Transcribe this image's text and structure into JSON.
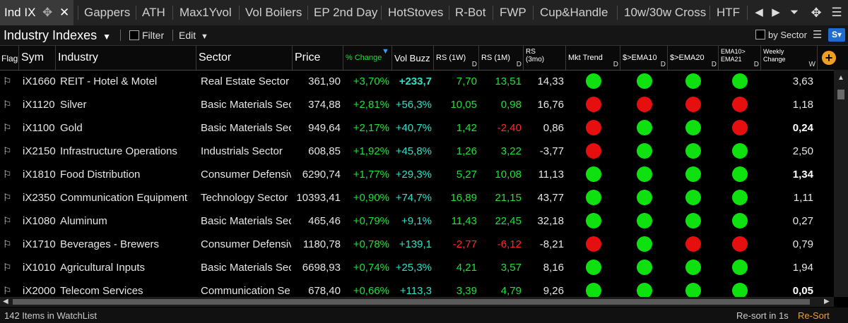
{
  "tabs": [
    {
      "label": "Ind IX",
      "active": true
    },
    {
      "label": "Gappers"
    },
    {
      "label": "ATH"
    },
    {
      "label": "Max1Yvol"
    },
    {
      "label": "Vol Boilers"
    },
    {
      "label": "EP 2nd Day"
    },
    {
      "label": "HotStoves"
    },
    {
      "label": "R-Bot"
    },
    {
      "label": "FWP"
    },
    {
      "label": "Cup&Handle"
    },
    {
      "label": "10w/30w Cross"
    },
    {
      "label": "HTF"
    }
  ],
  "toolbar": {
    "title": "Industry Indexes",
    "filter_label": "Filter",
    "edit_label": "Edit",
    "by_sector_label": "by Sector"
  },
  "columns": {
    "flag": "Flag",
    "sym": "Sym",
    "industry": "Industry",
    "sector": "Sector",
    "price": "Price",
    "pct_change": "% Change",
    "vol_buzz": "Vol Buzz",
    "rs1w": "RS (1W)",
    "rs1m": "RS (1M)",
    "rs3mo_line1": "RS",
    "rs3mo_line2": "(3mo)",
    "mkt_trend": "Mkt Trend",
    "ema10": "$>EMA10",
    "ema20": "$>EMA20",
    "ema1021_line1": "EMA10>",
    "ema1021_line2": "EMA21",
    "weekly_line1": "Weekly",
    "weekly_line2": "Change",
    "suffix_d": "D",
    "suffix_w": "W"
  },
  "rows": [
    {
      "sym": "iX1660",
      "industry": "REIT - Hotel & Motel",
      "sector": "Real Estate Sector",
      "price": "361,90",
      "pct": "+3,70%",
      "buzz": "+233,7",
      "buzz_bold": true,
      "rs1w": "7,70",
      "rs1m": "13,51",
      "rs3": "14,33",
      "mkt": "green",
      "e10": "green",
      "e20": "green",
      "e1021": "green",
      "weekly": "3,63",
      "weekly_bold": false
    },
    {
      "sym": "iX1120",
      "industry": "Silver",
      "sector": "Basic Materials Sec",
      "price": "374,88",
      "pct": "+2,81%",
      "buzz": "+56,3%",
      "rs1w": "10,05",
      "rs1m": "0,98",
      "rs3": "16,76",
      "mkt": "red",
      "e10": "red",
      "e20": "red",
      "e1021": "red",
      "weekly": "1,18",
      "weekly_bold": false
    },
    {
      "sym": "iX1100",
      "industry": "Gold",
      "sector": "Basic Materials Sec",
      "price": "949,64",
      "pct": "+2,17%",
      "buzz": "+40,7%",
      "rs1w": "1,42",
      "rs1m": "-2,40",
      "rs3": "0,86",
      "mkt": "red",
      "e10": "green",
      "e20": "green",
      "e1021": "red",
      "weekly": "0,24",
      "weekly_bold": true
    },
    {
      "sym": "iX2150",
      "industry": "Infrastructure Operations",
      "sector": "Industrials Sector",
      "price": "608,85",
      "pct": "+1,92%",
      "buzz": "+45,8%",
      "rs1w": "1,26",
      "rs1m": "3,22",
      "rs3": "-3,77",
      "mkt": "red",
      "e10": "green",
      "e20": "green",
      "e1021": "green",
      "weekly": "2,50",
      "weekly_bold": false
    },
    {
      "sym": "iX1810",
      "industry": "Food Distribution",
      "sector": "Consumer Defensiv",
      "price": "6290,74",
      "pct": "+1,77%",
      "buzz": "+29,3%",
      "rs1w": "5,27",
      "rs1m": "10,08",
      "rs3": "11,13",
      "mkt": "green",
      "e10": "green",
      "e20": "green",
      "e1021": "green",
      "weekly": "1,34",
      "weekly_bold": true
    },
    {
      "sym": "iX2350",
      "industry": "Communication Equipment",
      "sector": "Technology Sector",
      "price": "10393,41",
      "pct": "+0,90%",
      "buzz": "+74,7%",
      "rs1w": "16,89",
      "rs1m": "21,15",
      "rs3": "43,77",
      "mkt": "green",
      "e10": "green",
      "e20": "green",
      "e1021": "green",
      "weekly": "1,11",
      "weekly_bold": false
    },
    {
      "sym": "iX1080",
      "industry": "Aluminum",
      "sector": "Basic Materials Sec",
      "price": "465,46",
      "pct": "+0,79%",
      "buzz": "+9,1%",
      "rs1w": "11,43",
      "rs1m": "22,45",
      "rs3": "32,18",
      "mkt": "green",
      "e10": "green",
      "e20": "green",
      "e1021": "green",
      "weekly": "0,27",
      "weekly_bold": false
    },
    {
      "sym": "iX1710",
      "industry": "Beverages - Brewers",
      "sector": "Consumer Defensiv",
      "price": "1180,78",
      "pct": "+0,78%",
      "buzz": "+139,1",
      "rs1w": "-2,77",
      "rs1m": "-6,12",
      "rs3": "-8,21",
      "mkt": "red",
      "e10": "green",
      "e20": "red",
      "e1021": "red",
      "weekly": "0,79",
      "weekly_bold": false
    },
    {
      "sym": "iX1010",
      "industry": "Agricultural Inputs",
      "sector": "Basic Materials Sec",
      "price": "6698,93",
      "pct": "+0,74%",
      "buzz": "+25,3%",
      "rs1w": "4,21",
      "rs1m": "3,57",
      "rs3": "8,16",
      "mkt": "green",
      "e10": "green",
      "e20": "green",
      "e1021": "green",
      "weekly": "1,94",
      "weekly_bold": false
    },
    {
      "sym": "iX2000",
      "industry": "Telecom Services",
      "sector": "Communication Se",
      "price": "678,40",
      "pct": "+0,66%",
      "buzz": "+113,3",
      "rs1w": "3,39",
      "rs1m": "4,79",
      "rs3": "9,26",
      "mkt": "green",
      "e10": "green",
      "e20": "green",
      "e1021": "green",
      "weekly": "0,05",
      "weekly_bold": true
    }
  ],
  "status": {
    "items_text": "142 Items in WatchList",
    "resort_timer": "Re-sort in 1s",
    "resort_button": "Re-Sort"
  },
  "colors": {
    "positive": "#22e03a",
    "negative": "#ff2a2a",
    "buzz": "#2fe0c8",
    "dot_green": "#0fe010",
    "dot_red": "#e50f0f",
    "accent_orange": "#f0a020",
    "accent_blue": "#1e6cd0"
  },
  "icons": {
    "flag": "flag-icon",
    "add_column": "plus-icon",
    "menu": "hamburger-icon",
    "sector_view": "sector-view-icon",
    "move": "move-icon",
    "close": "close-icon"
  }
}
